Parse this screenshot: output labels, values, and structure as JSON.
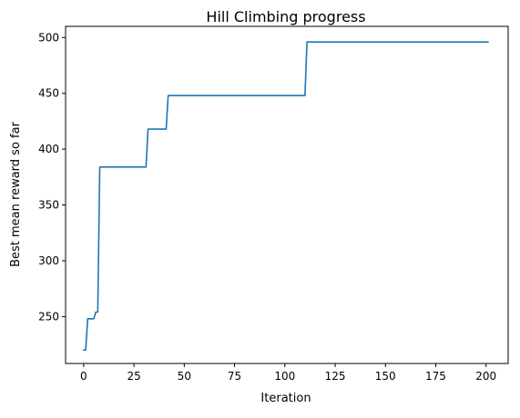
{
  "chart_data": {
    "type": "line",
    "title": "Hill Climbing progress",
    "xlabel": "Iteration",
    "ylabel": "Best mean reward so far",
    "xlim": [
      -9,
      211
    ],
    "ylim": [
      208,
      510
    ],
    "x_ticks": [
      0,
      25,
      50,
      75,
      100,
      125,
      150,
      175,
      200
    ],
    "y_ticks": [
      250,
      300,
      350,
      400,
      450,
      500
    ],
    "grid": false,
    "legend": "none",
    "series": [
      {
        "color": "#1f77b4",
        "points": [
          [
            0,
            220
          ],
          [
            1,
            220
          ],
          [
            2,
            248
          ],
          [
            5,
            248
          ],
          [
            6,
            254
          ],
          [
            7,
            254
          ],
          [
            8,
            384
          ],
          [
            31,
            384
          ],
          [
            32,
            418
          ],
          [
            41,
            418
          ],
          [
            42,
            448
          ],
          [
            110,
            448
          ],
          [
            111,
            496
          ],
          [
            201,
            496
          ]
        ]
      }
    ]
  }
}
